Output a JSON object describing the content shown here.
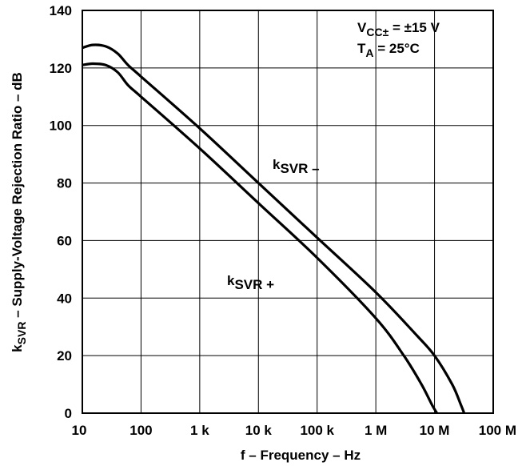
{
  "chart_data": {
    "type": "line",
    "xscale": "log",
    "xlim": [
      10,
      100000000
    ],
    "ylim": [
      0,
      140
    ],
    "x_ticks": [
      {
        "value": 10,
        "label": "10"
      },
      {
        "value": 100,
        "label": "100"
      },
      {
        "value": 1000,
        "label": "1 k"
      },
      {
        "value": 10000,
        "label": "10 k"
      },
      {
        "value": 100000,
        "label": "100 k"
      },
      {
        "value": 1000000,
        "label": "1 M"
      },
      {
        "value": 10000000,
        "label": "10 M"
      },
      {
        "value": 100000000,
        "label": "100 M"
      }
    ],
    "y_ticks": [
      0,
      20,
      40,
      60,
      80,
      100,
      120,
      140
    ],
    "grid": true,
    "xlabel": "f – Frequency – Hz",
    "ylabel": {
      "pre": "k",
      "sub": "SVR",
      "post": " – Supply-Voltage Rejection Ratio – dB"
    },
    "annotation": {
      "line1": {
        "pre": "V",
        "sub": "CC±",
        "post": " = ±15 V"
      },
      "line2": {
        "pre": "T",
        "sub": "A",
        "post": " = 25°C"
      }
    },
    "series": [
      {
        "name": {
          "pre": "k",
          "sub": "SVR –"
        },
        "x": [
          10,
          15,
          25,
          40,
          60,
          100,
          1000,
          10000,
          100000,
          1000000,
          5000000,
          10000000,
          20000000,
          28000000,
          32000000
        ],
        "y": [
          127,
          128,
          127.5,
          125,
          121,
          117,
          99,
          80,
          61,
          42,
          27,
          20,
          10,
          3,
          0
        ]
      },
      {
        "name": {
          "pre": "k",
          "sub": "SVR +"
        },
        "x": [
          10,
          15,
          25,
          40,
          60,
          100,
          1000,
          10000,
          100000,
          1000000,
          3000000,
          6000000,
          9000000,
          11000000
        ],
        "y": [
          121,
          121.5,
          121,
          118.5,
          114,
          110,
          92,
          73,
          54,
          33,
          20,
          10,
          3,
          0
        ]
      }
    ]
  }
}
